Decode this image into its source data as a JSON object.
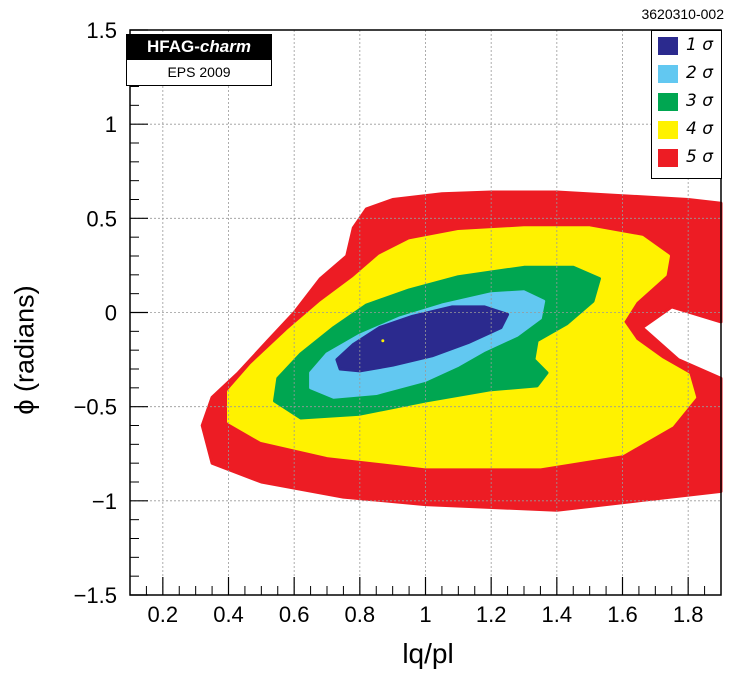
{
  "figure_id": "3620310-002",
  "badge": {
    "title_main": "HFAG-",
    "title_italic": "charm",
    "subtitle": "EPS 2009"
  },
  "colors": {
    "sigma1": "#2b2a8e",
    "sigma2": "#62c8f1",
    "sigma3": "#00a651",
    "sigma4": "#fff200",
    "sigma5": "#ed1c24",
    "central_point": "#fff200"
  },
  "chart_data": {
    "type": "contour",
    "xlabel": "lq/pl",
    "ylabel": "ϕ (radians)",
    "xlim": [
      0.1,
      1.9
    ],
    "ylim": [
      -1.5,
      1.5
    ],
    "x_ticks": [
      "0.2",
      "0.4",
      "0.6",
      "0.8",
      "1",
      "1.2",
      "1.4",
      "1.6",
      "1.8"
    ],
    "y_ticks": [
      "1.5",
      "1",
      "0.5",
      "0",
      "−0.5",
      "−1",
      "−1.5"
    ],
    "grid": true,
    "legend_position": "top-right",
    "best_fit": {
      "x": 0.87,
      "y": -0.15
    },
    "series": [
      {
        "name": "5 σ",
        "color_key": "sigma5",
        "contour": [
          [
            0.43,
            -0.32
          ],
          [
            0.52,
            -0.15
          ],
          [
            0.6,
            0.0
          ],
          [
            0.68,
            0.18
          ],
          [
            0.76,
            0.3
          ],
          [
            0.78,
            0.45
          ],
          [
            0.82,
            0.55
          ],
          [
            0.9,
            0.6
          ],
          [
            1.05,
            0.63
          ],
          [
            1.2,
            0.64
          ],
          [
            1.4,
            0.64
          ],
          [
            1.6,
            0.62
          ],
          [
            1.8,
            0.6
          ],
          [
            1.9,
            0.58
          ],
          [
            1.9,
            -0.05
          ],
          [
            1.75,
            0.03
          ],
          [
            1.66,
            -0.08
          ],
          [
            1.77,
            -0.25
          ],
          [
            1.9,
            -0.35
          ],
          [
            1.9,
            -0.95
          ],
          [
            1.65,
            -1.0
          ],
          [
            1.4,
            -1.05
          ],
          [
            1.0,
            -1.02
          ],
          [
            0.75,
            -0.98
          ],
          [
            0.5,
            -0.9
          ],
          [
            0.35,
            -0.8
          ],
          [
            0.32,
            -0.6
          ],
          [
            0.35,
            -0.45
          ]
        ]
      },
      {
        "name": "4 σ",
        "color_key": "sigma4",
        "contour": [
          [
            0.47,
            -0.28
          ],
          [
            0.58,
            -0.1
          ],
          [
            0.68,
            0.05
          ],
          [
            0.78,
            0.18
          ],
          [
            0.86,
            0.3
          ],
          [
            0.95,
            0.38
          ],
          [
            1.1,
            0.43
          ],
          [
            1.3,
            0.45
          ],
          [
            1.5,
            0.45
          ],
          [
            1.66,
            0.4
          ],
          [
            1.74,
            0.3
          ],
          [
            1.73,
            0.2
          ],
          [
            1.64,
            0.06
          ],
          [
            1.6,
            -0.05
          ],
          [
            1.64,
            -0.15
          ],
          [
            1.72,
            -0.25
          ],
          [
            1.8,
            -0.33
          ],
          [
            1.82,
            -0.45
          ],
          [
            1.75,
            -0.6
          ],
          [
            1.6,
            -0.75
          ],
          [
            1.35,
            -0.82
          ],
          [
            1.0,
            -0.82
          ],
          [
            0.7,
            -0.76
          ],
          [
            0.5,
            -0.68
          ],
          [
            0.4,
            -0.58
          ],
          [
            0.4,
            -0.42
          ]
        ]
      },
      {
        "name": "3 σ",
        "color_key": "sigma3",
        "contour": [
          [
            0.55,
            -0.35
          ],
          [
            0.62,
            -0.22
          ],
          [
            0.72,
            -0.08
          ],
          [
            0.82,
            0.04
          ],
          [
            0.95,
            0.12
          ],
          [
            1.1,
            0.19
          ],
          [
            1.3,
            0.24
          ],
          [
            1.45,
            0.24
          ],
          [
            1.53,
            0.18
          ],
          [
            1.51,
            0.06
          ],
          [
            1.43,
            -0.06
          ],
          [
            1.34,
            -0.15
          ],
          [
            1.33,
            -0.25
          ],
          [
            1.37,
            -0.32
          ],
          [
            1.34,
            -0.39
          ],
          [
            1.2,
            -0.41
          ],
          [
            1.0,
            -0.47
          ],
          [
            0.8,
            -0.54
          ],
          [
            0.62,
            -0.56
          ],
          [
            0.54,
            -0.47
          ]
        ]
      },
      {
        "name": "2 σ",
        "color_key": "sigma2",
        "contour": [
          [
            0.65,
            -0.32
          ],
          [
            0.7,
            -0.22
          ],
          [
            0.8,
            -0.12
          ],
          [
            0.92,
            -0.03
          ],
          [
            1.05,
            0.04
          ],
          [
            1.2,
            0.1
          ],
          [
            1.3,
            0.11
          ],
          [
            1.36,
            0.06
          ],
          [
            1.35,
            -0.03
          ],
          [
            1.28,
            -0.12
          ],
          [
            1.18,
            -0.2
          ],
          [
            1.1,
            -0.28
          ],
          [
            1.0,
            -0.36
          ],
          [
            0.85,
            -0.43
          ],
          [
            0.72,
            -0.45
          ],
          [
            0.65,
            -0.4
          ]
        ]
      },
      {
        "name": "1 σ",
        "color_key": "sigma1",
        "contour": [
          [
            0.73,
            -0.25
          ],
          [
            0.78,
            -0.17
          ],
          [
            0.86,
            -0.08
          ],
          [
            0.96,
            -0.02
          ],
          [
            1.08,
            0.03
          ],
          [
            1.18,
            0.03
          ],
          [
            1.25,
            -0.01
          ],
          [
            1.23,
            -0.08
          ],
          [
            1.13,
            -0.16
          ],
          [
            1.02,
            -0.23
          ],
          [
            0.9,
            -0.28
          ],
          [
            0.8,
            -0.31
          ],
          [
            0.74,
            -0.3
          ]
        ]
      }
    ]
  }
}
